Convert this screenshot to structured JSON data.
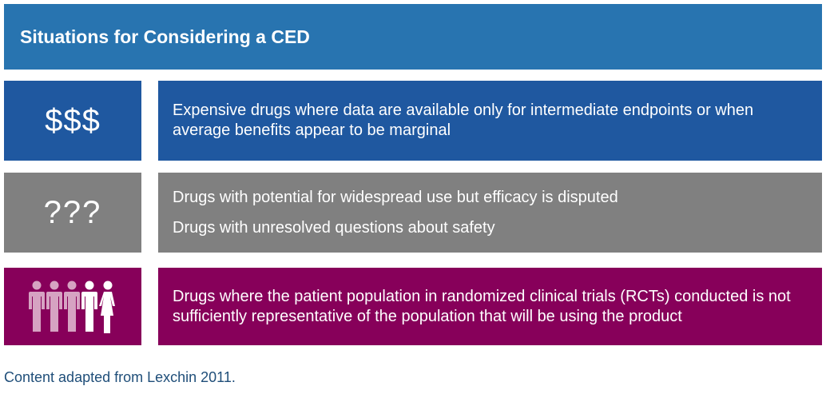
{
  "header": {
    "title": "Situations for Considering a CED"
  },
  "rows": [
    {
      "symbol": "$$$",
      "color": "#1f58a0",
      "lines": [
        "Expensive drugs where data are available only for intermediate endpoints or when average benefits appear to be marginal"
      ]
    },
    {
      "symbol": "???",
      "color": "#808080",
      "lines": [
        "Drugs with potential for widespread use but efficacy is disputed",
        "Drugs with unresolved questions about safety"
      ]
    },
    {
      "symbol_icon": "people-group-icon",
      "color": "#87005a",
      "lines": [
        "Drugs where the patient population in randomized clinical trials (RCTs) conducted is not sufficiently representative of the population that will be using the product"
      ]
    }
  ],
  "colors": {
    "header": "#2874b0",
    "people_muted": "#d6a3c2",
    "people_white": "#ffffff",
    "footer_text": "#1f4e79"
  },
  "footer": {
    "text": "Content adapted from Lexchin 2011."
  }
}
